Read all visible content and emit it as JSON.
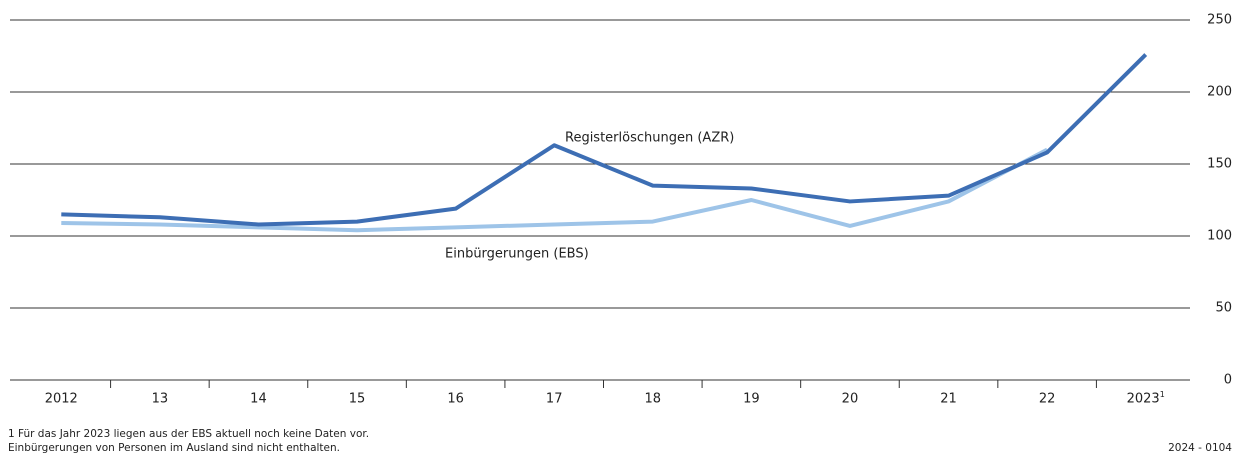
{
  "chart_data": {
    "type": "line",
    "categories": [
      "2012",
      "13",
      "14",
      "15",
      "16",
      "17",
      "18",
      "19",
      "20",
      "21",
      "22",
      "2023"
    ],
    "category_superscript": "1",
    "series": [
      {
        "name": "Registerlöschungen (AZR)",
        "color": "#3d6eb4",
        "values": [
          115,
          113,
          108,
          110,
          119,
          163,
          135,
          133,
          124,
          128,
          158,
          226
        ]
      },
      {
        "name": "Einbürgerungen (EBS)",
        "color": "#9ec4e8",
        "values": [
          109,
          108,
          106,
          104,
          106,
          108,
          110,
          125,
          107,
          124,
          160,
          null
        ]
      }
    ],
    "ylim": [
      0,
      250
    ],
    "yticks": [
      0,
      50,
      100,
      150,
      200,
      250
    ],
    "grid": true,
    "footnotes": [
      "1   Für das Jahr 2023 liegen aus der EBS aktuell noch keine Daten vor.",
      "Einbürgerungen von Personen im Ausland sind nicht enthalten."
    ],
    "source_code": "2024 - 0104"
  }
}
